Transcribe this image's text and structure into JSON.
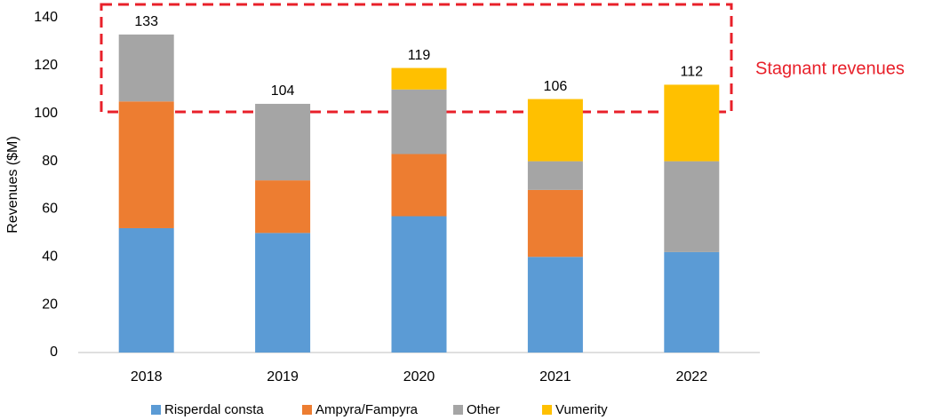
{
  "chart_data": {
    "type": "stacked_bar",
    "y_label": "Revenues ($M)",
    "annotation": "Stagnant revenues",
    "categories": [
      "2018",
      "2019",
      "2020",
      "2021",
      "2022"
    ],
    "series": [
      {
        "name": "Risperdal consta",
        "color": "#5b9bd5",
        "values": [
          52,
          50,
          57,
          40,
          42
        ]
      },
      {
        "name": "Ampyra/Fampyra",
        "color": "#ed7d31",
        "values": [
          53,
          22,
          26,
          28,
          0
        ]
      },
      {
        "name": "Other",
        "color": "#a5a5a5",
        "values": [
          28,
          32,
          27,
          12,
          38
        ]
      },
      {
        "name": "Vumerity",
        "color": "#ffc000",
        "values": [
          0,
          0,
          9,
          26,
          32
        ]
      }
    ],
    "totals": [
      133,
      104,
      119,
      106,
      112
    ],
    "ylim": [
      0,
      140
    ],
    "yticks": [
      0,
      20,
      40,
      60,
      80,
      100,
      120,
      140
    ],
    "grid": false,
    "legend": "bottom"
  }
}
